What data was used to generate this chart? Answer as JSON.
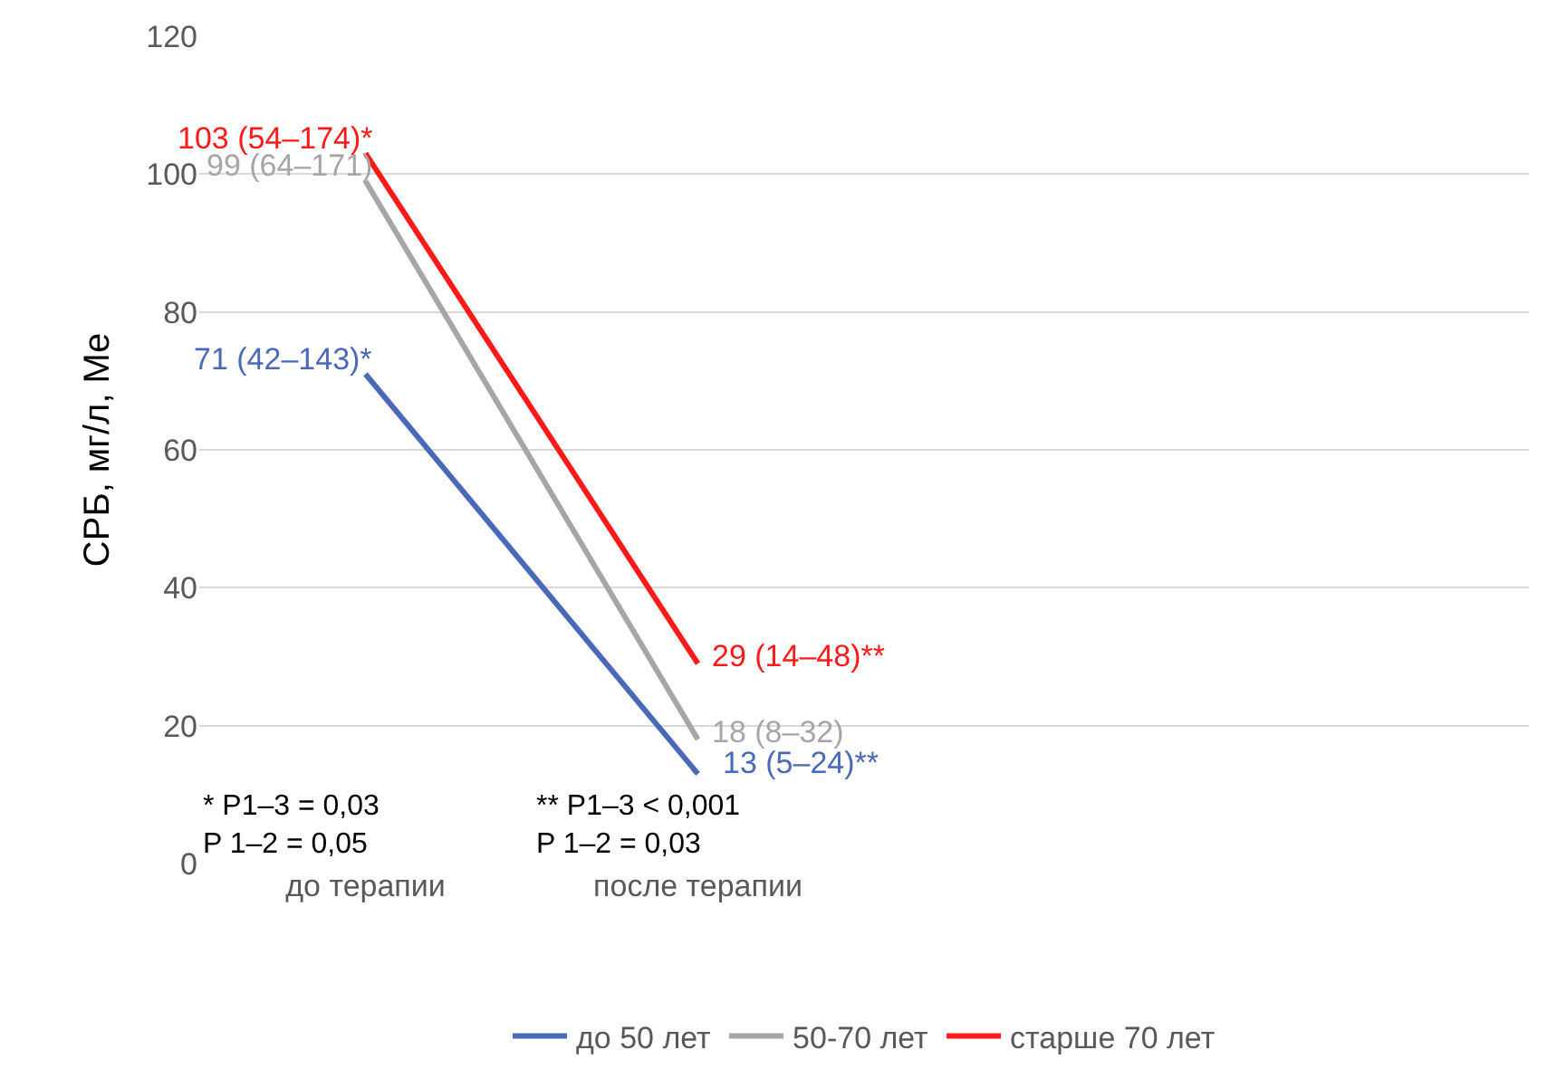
{
  "chart_data": {
    "type": "line",
    "ylabel": "СРБ, мг/л, Me",
    "categories": [
      "до терапии",
      "после терапии",
      null,
      null
    ],
    "series": [
      {
        "name": "до 50 лет",
        "color": "#4a69b8",
        "values": [
          71,
          13,
          null,
          null
        ],
        "value_labels": [
          "71 (42–143)*",
          "13 (5–24)**",
          null,
          null
        ]
      },
      {
        "name": "50-70 лет",
        "color": "#a6a6a6",
        "values": [
          99,
          18,
          null,
          null
        ],
        "value_labels": [
          "99 (64–171)",
          "18 (8–32)",
          null,
          null
        ]
      },
      {
        "name": "старше 70 лет",
        "color": "#ff1a1a",
        "values": [
          103,
          29,
          null,
          null
        ],
        "value_labels": [
          "103 (54–174)*",
          "29 (14–48)**",
          null,
          null
        ]
      }
    ],
    "annotations": [
      "* P1–3 = 0,03",
      "P 1–2 = 0,05",
      "** P1–3 < 0,001",
      "P 1–2 = 0,03"
    ],
    "ylim": [
      0,
      120
    ],
    "yticks": [
      0,
      20,
      40,
      60,
      80,
      100,
      120
    ],
    "grid": "y",
    "legend": "bottom",
    "marker": "none",
    "line_style": "solid"
  }
}
